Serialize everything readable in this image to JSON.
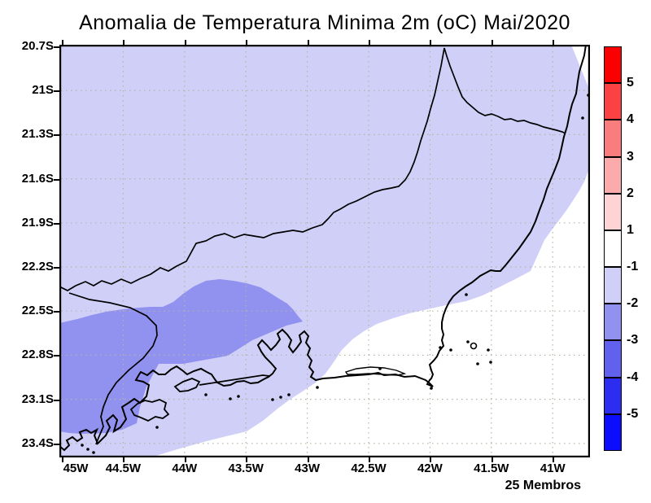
{
  "title": "Anomalia de Temperatura Minima 2m (oC) Mai/2020",
  "members_label": "25 Membros",
  "axes": {
    "lat_ticks": [
      "20.7S",
      "21S",
      "21.3S",
      "21.6S",
      "21.9S",
      "22.2S",
      "22.5S",
      "22.8S",
      "23.1S",
      "23.4S"
    ],
    "lon_ticks": [
      "45W",
      "44.5W",
      "44W",
      "43.5W",
      "43W",
      "42.5W",
      "42W",
      "41.5W",
      "41W"
    ]
  },
  "colorbar": {
    "labels": [
      "5",
      "4",
      "3",
      "2",
      "1",
      "-1",
      "-2",
      "-3",
      "-4",
      "-5"
    ],
    "colors": [
      "#fb0000",
      "#fb4141",
      "#f97d7d",
      "#fbabab",
      "#fdd3d3",
      "#ffffff",
      "#cfcff7",
      "#9191f0",
      "#6161ee",
      "#2d2df2",
      "#0d0dfd"
    ]
  },
  "chart_data": {
    "type": "heatmap",
    "title": "Anomalia de Temperatura Minima 2m (oC) Mai/2020",
    "annotation": "25 Membros",
    "unit": "oC",
    "x_tick_labels": [
      "45W",
      "44.5W",
      "44W",
      "43.5W",
      "43W",
      "42.5W",
      "42W",
      "41.5W",
      "41W"
    ],
    "y_tick_labels": [
      "20.7S",
      "21S",
      "21.3S",
      "21.6S",
      "21.9S",
      "22.2S",
      "22.5S",
      "22.8S",
      "23.1S",
      "23.4S"
    ],
    "x_range_deg_west": [
      45.0,
      40.7
    ],
    "y_range_deg_south": [
      20.7,
      23.5
    ],
    "grid": true,
    "legend_position": "right",
    "legend_levels": [
      5,
      4,
      3,
      2,
      1,
      -1,
      -2,
      -3,
      -4,
      -5
    ],
    "legend_colors": [
      "#fb0000",
      "#fb4141",
      "#f97d7d",
      "#fbabab",
      "#fdd3d3",
      "#ffffff",
      "#cfcff7",
      "#9191f0",
      "#6161ee",
      "#2d2df2",
      "#0d0dfd"
    ],
    "filled_regions": [
      {
        "value_range": "-2 to -1",
        "color": "#cfcff7",
        "area": "most of the land domain (MG / northern RJ / ES)"
      },
      {
        "value_range": "-3 to -2",
        "color": "#9191f0",
        "area": "southwestern Rio de Janeiro, approx 45W-43.2W and 22.5S-23.3S"
      },
      {
        "value_range": "-1 to 1",
        "color": "#ffffff",
        "area": "Atlantic ocean to the southeast and far northeast corner"
      }
    ],
    "map_features": [
      "state borders MG/SP/RJ/ES",
      "coastline with Ilha Grande, Sepetiba spit, Guanabara Bay, Araruama lagoon, Cabo Frio"
    ]
  },
  "colors": {
    "background": "#ffffff",
    "gridline": "#b5b5a3",
    "line": "#000000"
  }
}
